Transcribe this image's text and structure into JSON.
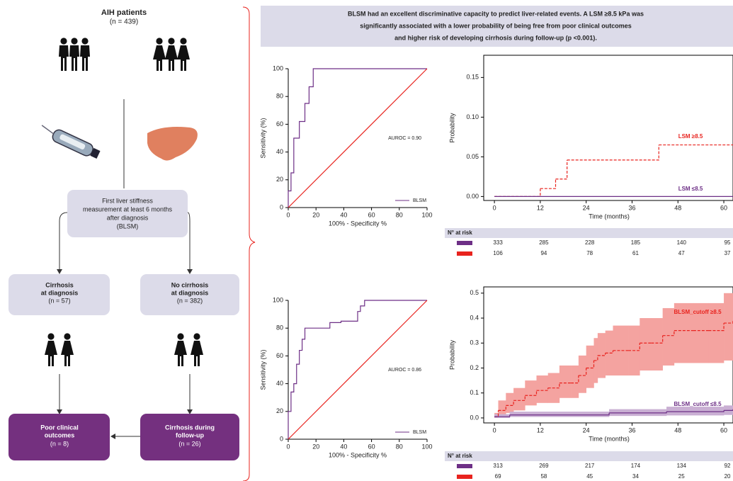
{
  "header": [
    "BLSM had an excellent discriminative capacity to predict liver-related events. A LSM ≥8.5 kPa was",
    "significantly associated with a lower probability of being free from poor clinical outcomes",
    "and higher risk of developing cirrhosis during follow-up (p <0.001)."
  ],
  "flow": {
    "title": "AIH patients",
    "count": "(n = 439)",
    "measurement": [
      "First liver stiffness",
      "measurement at least 6 months",
      "after diagnosis",
      "(BLSM)"
    ],
    "left_box": {
      "title": [
        "Cirrhosis",
        "at diagnosis"
      ],
      "count": "(n = 57)"
    },
    "right_box": {
      "title": [
        "No cirrhosis",
        "at diagnosis"
      ],
      "count": "(n = 382)"
    },
    "left_outcome": {
      "title": [
        "Poor clinical",
        "outcomes"
      ],
      "count": "(n = 8)"
    },
    "right_outcome": {
      "title": [
        "Cirrhosis during",
        "follow-up"
      ],
      "count": "(n = 26)"
    }
  },
  "chart_data": [
    {
      "type": "roc",
      "xlabel": "100% - Specificity %",
      "ylabel": "Sensitivity (%)",
      "annotation": "AUROC = 0.90",
      "xlim": [
        0,
        100
      ],
      "ylim": [
        0,
        100
      ],
      "xticks": [
        0,
        20,
        40,
        60,
        80,
        100
      ],
      "yticks": [
        0,
        20,
        40,
        60,
        80,
        100
      ],
      "series": [
        {
          "name": "BLSM",
          "color": "#6d2f86",
          "x": [
            0,
            0,
            2,
            2,
            4,
            4,
            8,
            8,
            12,
            12,
            15,
            15,
            18,
            18,
            100
          ],
          "values": [
            0,
            12,
            12,
            25,
            25,
            50,
            50,
            62,
            62,
            75,
            75,
            87,
            87,
            100,
            100
          ]
        },
        {
          "color": "#e8231e",
          "x": [
            0,
            100
          ],
          "values": [
            0,
            100
          ]
        }
      ]
    },
    {
      "type": "step",
      "xlabel": "Time (months)",
      "ylabel": "Probability",
      "xlim": [
        -2.8,
        62.4
      ],
      "ylim": [
        -0.005,
        0.178
      ],
      "xticks": [
        0,
        12,
        24,
        36,
        48,
        60
      ],
      "yticks": [
        {
          "value": 0,
          "label": "0.00"
        },
        {
          "value": 0.05,
          "label": "0.05"
        },
        {
          "value": 0.1,
          "label": "0.10"
        },
        {
          "value": 0.15,
          "label": "0.15"
        }
      ],
      "series": [
        {
          "name": "LSM ≥8.5",
          "color": "#e8231e",
          "dash": true,
          "x": [
            0,
            12,
            16,
            19,
            43,
            62.4
          ],
          "values": [
            0,
            0.01,
            0.022,
            0.046,
            0.065,
            0.065
          ]
        },
        {
          "name": "LSM ≤8.5",
          "color": "#6d2f86",
          "dash": false,
          "x": [
            0,
            62.4
          ],
          "values": [
            0,
            0
          ]
        }
      ],
      "risk_table": {
        "title": "N° at risk",
        "rows": [
          {
            "color": "#6d2f86",
            "values": [
              333,
              285,
              228,
              185,
              140,
              95
            ]
          },
          {
            "color": "#e8231e",
            "values": [
              106,
              94,
              78,
              61,
              47,
              37
            ]
          }
        ]
      }
    },
    {
      "type": "roc",
      "xlabel": "100% - Specificity %",
      "ylabel": "Sensitivity (%)",
      "annotation": "AUROC = 0.86",
      "xlim": [
        0,
        100
      ],
      "ylim": [
        0,
        100
      ],
      "xticks": [
        0,
        20,
        40,
        60,
        80,
        100
      ],
      "yticks": [
        0,
        20,
        40,
        60,
        80,
        100
      ],
      "series": [
        {
          "name": "BLSM",
          "color": "#6d2f86",
          "x": [
            0,
            0,
            2,
            2,
            4,
            4,
            6,
            6,
            8,
            8,
            10,
            10,
            12,
            12,
            30,
            30,
            38,
            38,
            50,
            50,
            52,
            52,
            55,
            55,
            100
          ],
          "values": [
            0,
            20,
            20,
            34,
            34,
            40,
            40,
            54,
            54,
            64,
            64,
            72,
            72,
            80,
            80,
            84,
            84,
            85,
            85,
            92,
            92,
            96,
            96,
            100,
            100
          ]
        },
        {
          "color": "#e8231e",
          "x": [
            0,
            100
          ],
          "values": [
            0,
            100
          ]
        }
      ]
    },
    {
      "type": "step",
      "xlabel": "Time (months)",
      "ylabel": "Probability",
      "xlim": [
        -2.8,
        62.4
      ],
      "ylim": [
        -0.02,
        0.525
      ],
      "xticks": [
        0,
        12,
        24,
        36,
        48,
        60
      ],
      "yticks": [
        {
          "value": 0,
          "label": "0.0"
        },
        0.1,
        0.2,
        0.3,
        0.4,
        0.5
      ],
      "series": [
        {
          "name": "BLSM_cutoff ≥8.5",
          "color": "#e8231e",
          "band": "#f4a3a0",
          "dash": true,
          "x": [
            0,
            1,
            3,
            5,
            8,
            11,
            14,
            17,
            20,
            22,
            24,
            26,
            27,
            29,
            31,
            35,
            38,
            41,
            44,
            47,
            52,
            56,
            60,
            62.4
          ],
          "values": [
            0.005,
            0.03,
            0.05,
            0.07,
            0.09,
            0.11,
            0.12,
            0.14,
            0.14,
            0.17,
            0.2,
            0.23,
            0.25,
            0.26,
            0.27,
            0.27,
            0.3,
            0.3,
            0.33,
            0.35,
            0.35,
            0.35,
            0.38,
            0.39
          ],
          "lower": [
            0,
            0.01,
            0.02,
            0.03,
            0.05,
            0.06,
            0.06,
            0.08,
            0.08,
            0.1,
            0.12,
            0.14,
            0.16,
            0.17,
            0.17,
            0.17,
            0.19,
            0.19,
            0.21,
            0.22,
            0.22,
            0.22,
            0.23,
            0.23
          ],
          "upper": [
            0.02,
            0.07,
            0.1,
            0.12,
            0.15,
            0.17,
            0.18,
            0.21,
            0.21,
            0.25,
            0.29,
            0.32,
            0.34,
            0.35,
            0.37,
            0.37,
            0.4,
            0.4,
            0.44,
            0.46,
            0.46,
            0.46,
            0.5,
            0.52
          ]
        },
        {
          "name": "BLSM_cutoff ≤8.5",
          "color": "#6d2f86",
          "band": "#c9afd3",
          "dash": false,
          "x": [
            0,
            1,
            4,
            30,
            45,
            60,
            62.4
          ],
          "values": [
            0.005,
            0.005,
            0.012,
            0.02,
            0.025,
            0.03,
            0.035
          ],
          "lower": [
            0,
            0,
            0.004,
            0.008,
            0.01,
            0.012,
            0.015
          ],
          "upper": [
            0.015,
            0.015,
            0.025,
            0.035,
            0.045,
            0.05,
            0.06
          ]
        }
      ],
      "risk_table": {
        "title": "N° at risk",
        "rows": [
          {
            "color": "#6d2f86",
            "values": [
              313,
              269,
              217,
              174,
              134,
              92
            ]
          },
          {
            "color": "#e8231e",
            "values": [
              69,
              58,
              45,
              34,
              25,
              20
            ]
          }
        ]
      }
    }
  ]
}
